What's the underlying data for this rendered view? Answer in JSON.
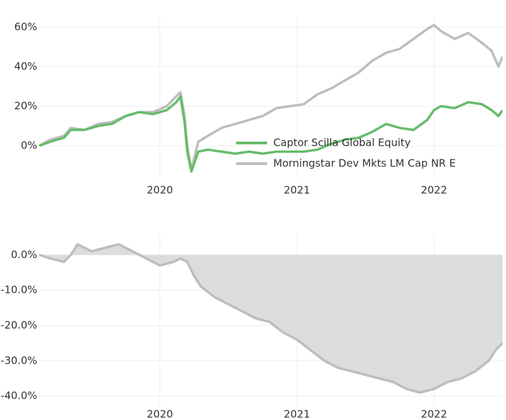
{
  "chart_data": [
    {
      "type": "line",
      "x": [
        2019.12,
        2019.2,
        2019.3,
        2019.35,
        2019.45,
        2019.55,
        2019.65,
        2019.75,
        2019.85,
        2019.95,
        2020.05,
        2020.12,
        2020.15,
        2020.18,
        2020.2,
        2020.23,
        2020.28,
        2020.35,
        2020.45,
        2020.55,
        2020.65,
        2020.75,
        2020.85,
        2020.95,
        2021.05,
        2021.15,
        2021.25,
        2021.35,
        2021.45,
        2021.55,
        2021.65,
        2021.75,
        2021.85,
        2021.95,
        2022.0,
        2022.05,
        2022.15,
        2022.25,
        2022.35,
        2022.42,
        2022.47,
        2022.5
      ],
      "series": [
        {
          "name": "Morningstar Dev Mkts LM Cap NR E",
          "color": "#bdbdbd",
          "values": [
            0,
            3,
            5,
            9,
            8,
            11,
            12,
            15,
            17,
            17,
            20,
            25,
            27,
            15,
            0,
            -12,
            2,
            5,
            9,
            11,
            13,
            15,
            19,
            20,
            21,
            26,
            29,
            33,
            37,
            43,
            47,
            49,
            54,
            59,
            61,
            58,
            54,
            57,
            52,
            48,
            40,
            45
          ]
        },
        {
          "name": "Captor Scilla Global Equity",
          "color": "#66bb6a",
          "values": [
            0,
            2,
            4,
            8,
            8,
            10,
            11,
            15,
            17,
            16,
            18,
            22,
            25,
            12,
            -3,
            -13,
            -3,
            -2,
            -3,
            -4,
            -3,
            -4,
            -3,
            -3,
            -3,
            -2,
            1,
            3,
            4,
            7,
            11,
            9,
            8,
            13,
            18,
            20,
            19,
            22,
            21,
            18,
            15,
            18
          ]
        }
      ],
      "xlim": [
        2019.12,
        2022.5
      ],
      "xticks": [
        2020,
        2021,
        2022
      ],
      "ylim": [
        -16,
        65
      ],
      "yticks": [
        {
          "value": 0,
          "label": "0%"
        },
        {
          "value": 20,
          "label": "20%"
        },
        {
          "value": 40,
          "label": "40%"
        },
        {
          "value": 60,
          "label": "60%"
        }
      ],
      "grid": true
    },
    {
      "type": "area",
      "x": [
        2019.12,
        2019.2,
        2019.3,
        2019.35,
        2019.4,
        2019.5,
        2019.6,
        2019.7,
        2019.8,
        2019.9,
        2020.0,
        2020.1,
        2020.15,
        2020.2,
        2020.25,
        2020.3,
        2020.4,
        2020.5,
        2020.6,
        2020.7,
        2020.8,
        2020.9,
        2021.0,
        2021.1,
        2021.2,
        2021.3,
        2021.4,
        2021.5,
        2021.6,
        2021.7,
        2021.8,
        2021.9,
        2022.0,
        2022.1,
        2022.2,
        2022.3,
        2022.4,
        2022.45,
        2022.5
      ],
      "values": [
        0,
        -1,
        -2,
        0,
        3,
        1,
        2,
        3,
        1,
        -1,
        -3,
        -2,
        -1,
        -2,
        -6,
        -9,
        -12,
        -14,
        -16,
        -18,
        -19,
        -22,
        -24,
        -27,
        -30,
        -32,
        -33,
        -34,
        -35,
        -36,
        -38,
        -39,
        -38,
        -36,
        -35,
        -33,
        -30,
        -27,
        -25
      ],
      "color": "#bdbdbd",
      "fill": "#dcdcdc",
      "xlim": [
        2019.12,
        2022.5
      ],
      "xticks": [
        2020,
        2021,
        2022
      ],
      "ylim": [
        -42.7,
        5.6
      ],
      "yticks": [
        {
          "value": 0,
          "label": "0.0%"
        },
        {
          "value": -10,
          "label": "-10.0%"
        },
        {
          "value": -20,
          "label": "-20.0%"
        },
        {
          "value": -30,
          "label": "-30.0%"
        },
        {
          "value": -40,
          "label": "-40.0%"
        }
      ],
      "grid": true
    }
  ]
}
